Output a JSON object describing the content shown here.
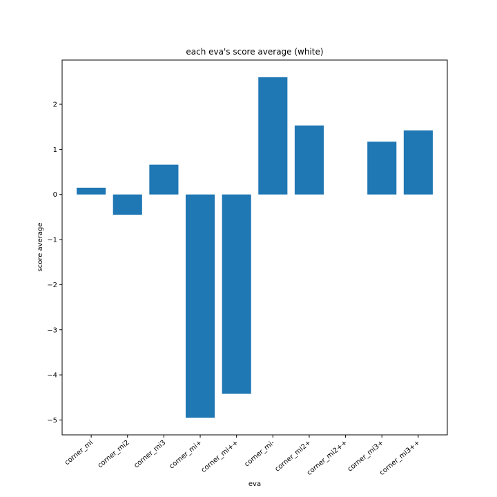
{
  "chart_data": {
    "type": "bar",
    "title": "each eva's score average (white)",
    "xlabel": "eva",
    "ylabel": "score average",
    "categories": [
      "corner_mi",
      "corner_mi2",
      "corner_mi3",
      "corner_mi+",
      "corner_mi++",
      "corner_mi-",
      "corner_mi2+",
      "corner_mi2++",
      "corner_mi3+",
      "corner_mi3++"
    ],
    "values": [
      0.15,
      -0.45,
      0.66,
      -4.95,
      -4.42,
      2.6,
      1.53,
      0.0,
      1.17,
      1.42
    ],
    "ylim": [
      -5.33,
      2.98
    ],
    "yticks": [
      -5,
      -4,
      -3,
      -2,
      -1,
      0,
      1,
      2
    ],
    "ytick_labels": [
      "−5",
      "−4",
      "−3",
      "−2",
      "−1",
      "0",
      "1",
      "2"
    ],
    "bar_color": "#1f77b4",
    "grid": false,
    "legend": "none"
  }
}
